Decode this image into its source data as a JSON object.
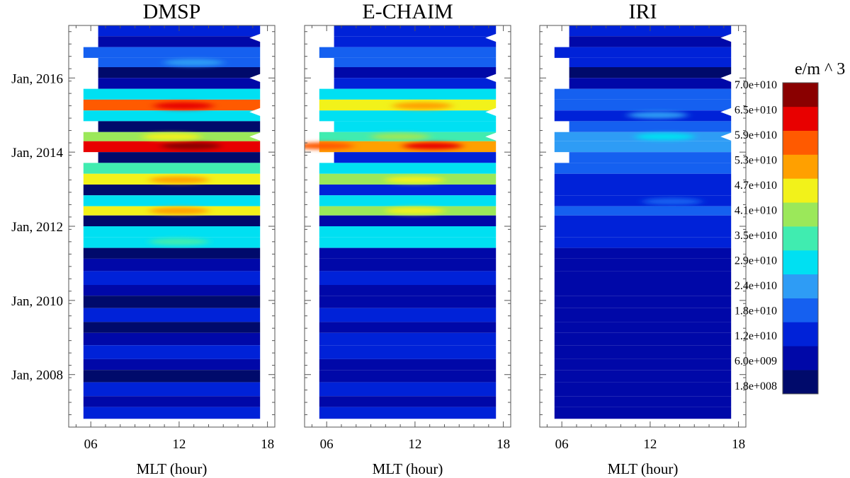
{
  "figure": {
    "time_tick_labels": [
      "Jan, 2016",
      "Jan, 2014",
      "Jan, 2012",
      "Jan, 2010",
      "Jan, 2008"
    ],
    "mlt_tick_labels": [
      "06",
      "12",
      "18"
    ],
    "colorbar": {
      "title": "e/m ^ 3",
      "levels": [
        "1.8e+008",
        "6.0e+009",
        "1.2e+010",
        "1.8e+010",
        "2.4e+010",
        "2.9e+010",
        "3.5e+010",
        "4.1e+010",
        "4.7e+010",
        "5.3e+010",
        "5.9e+010",
        "6.5e+010",
        "7.0e+010"
      ],
      "colors": [
        "#000a6b",
        "#0008a8",
        "#0022d8",
        "#1560f0",
        "#2e9cf5",
        "#00e0f2",
        "#40ecb0",
        "#9be85a",
        "#f2f21a",
        "#ffa000",
        "#ff5a00",
        "#e80000",
        "#8a0000"
      ]
    }
  },
  "chart_data": [
    {
      "type": "heatmap",
      "title": "DMSP",
      "xlabel": "MLT (hour)",
      "ylabel": "",
      "xlim": [
        4.5,
        18.5
      ],
      "x_ticks": [
        6,
        12,
        18
      ],
      "ylim": [
        "2006-08",
        "2017-06"
      ],
      "value_unit": "e/m^3",
      "data_x_range": [
        5.5,
        17.5
      ],
      "rows": [
        {
          "time": "2017-04",
          "x_start": 6.5,
          "level": 2
        },
        {
          "time": "2017-01",
          "x_start": 6.5,
          "level": 1
        },
        {
          "time": "2016-09",
          "x_start": 5.5,
          "level": 3
        },
        {
          "time": "2016-06",
          "x_start": 6.5,
          "level": 3
        },
        {
          "time": "2016-03",
          "x_start": 6.5,
          "level": 0
        },
        {
          "time": "2015-11",
          "x_start": 6.5,
          "level": 1
        },
        {
          "time": "2015-08",
          "x_start": 5.5,
          "level": 5
        },
        {
          "time": "2015-04",
          "x_start": 5.5,
          "level": 10
        },
        {
          "time": "2015-01",
          "x_start": 5.5,
          "level": 5
        },
        {
          "time": "2014-09",
          "x_start": 6.5,
          "level": 0
        },
        {
          "time": "2014-06",
          "x_start": 5.5,
          "level": 7
        },
        {
          "time": "2014-03",
          "x_start": 5.5,
          "level": 11
        },
        {
          "time": "2013-11",
          "x_start": 6.5,
          "level": 0
        },
        {
          "time": "2013-08",
          "x_start": 5.5,
          "level": 6
        },
        {
          "time": "2013-04",
          "x_start": 5.5,
          "level": 8
        },
        {
          "time": "2013-01",
          "x_start": 5.5,
          "level": 0
        },
        {
          "time": "2012-09",
          "x_start": 5.5,
          "level": 5
        },
        {
          "time": "2012-06",
          "x_start": 5.5,
          "level": 8
        },
        {
          "time": "2012-03",
          "x_start": 5.5,
          "level": 0
        },
        {
          "time": "2011-11",
          "x_start": 5.5,
          "level": 5
        },
        {
          "time": "2011-08",
          "x_start": 5.5,
          "level": 5
        },
        {
          "time": "2011-04",
          "x_start": 5.5,
          "level": 0
        },
        {
          "time": "2011-01",
          "x_start": 5.5,
          "level": 1
        },
        {
          "time": "2010-08",
          "x_start": 5.5,
          "level": 2
        },
        {
          "time": "2010-04",
          "x_start": 5.5,
          "level": 1
        },
        {
          "time": "2010-01",
          "x_start": 5.5,
          "level": 0
        },
        {
          "time": "2009-08",
          "x_start": 5.5,
          "level": 2
        },
        {
          "time": "2009-04",
          "x_start": 5.5,
          "level": 0
        },
        {
          "time": "2009-01",
          "x_start": 5.5,
          "level": 1
        },
        {
          "time": "2008-08",
          "x_start": 5.5,
          "level": 2
        },
        {
          "time": "2008-04",
          "x_start": 5.5,
          "level": 1
        },
        {
          "time": "2008-01",
          "x_start": 5.5,
          "level": 0
        },
        {
          "time": "2007-08",
          "x_start": 5.5,
          "level": 2
        },
        {
          "time": "2007-04",
          "x_start": 5.5,
          "level": 1
        },
        {
          "time": "2007-01",
          "x_start": 5.5,
          "level": 2
        }
      ],
      "hotspots": [
        {
          "time": "2015-04",
          "x": 12.3,
          "level": 11
        },
        {
          "time": "2014-03",
          "x": 12.8,
          "level": 12
        },
        {
          "time": "2014-06",
          "x": 11.5,
          "level": 8
        },
        {
          "time": "2013-04",
          "x": 12.0,
          "level": 9
        },
        {
          "time": "2012-06",
          "x": 12.0,
          "level": 9
        },
        {
          "time": "2016-06",
          "x": 13.0,
          "level": 4
        },
        {
          "time": "2011-08",
          "x": 12.0,
          "level": 6
        }
      ]
    },
    {
      "type": "heatmap",
      "title": "E-CHAIM",
      "xlabel": "MLT (hour)",
      "ylabel": "",
      "xlim": [
        4.5,
        18.5
      ],
      "x_ticks": [
        6,
        12,
        18
      ],
      "ylim": [
        "2006-08",
        "2017-06"
      ],
      "value_unit": "e/m^3",
      "data_x_range": [
        5.5,
        17.5
      ],
      "rows": [
        {
          "time": "2017-04",
          "x_start": 6.5,
          "level": 2
        },
        {
          "time": "2017-01",
          "x_start": 6.5,
          "level": 2
        },
        {
          "time": "2016-09",
          "x_start": 5.5,
          "level": 3
        },
        {
          "time": "2016-06",
          "x_start": 6.5,
          "level": 3
        },
        {
          "time": "2016-03",
          "x_start": 6.5,
          "level": 1
        },
        {
          "time": "2015-11",
          "x_start": 6.5,
          "level": 2
        },
        {
          "time": "2015-08",
          "x_start": 5.5,
          "level": 5
        },
        {
          "time": "2015-04",
          "x_start": 5.5,
          "level": 8
        },
        {
          "time": "2015-01",
          "x_start": 5.5,
          "level": 5
        },
        {
          "time": "2014-09",
          "x_start": 6.5,
          "level": 5
        },
        {
          "time": "2014-06",
          "x_start": 5.5,
          "level": 6
        },
        {
          "time": "2014-03",
          "x_start": 5.5,
          "level": 9
        },
        {
          "time": "2013-11",
          "x_start": 6.5,
          "level": 2
        },
        {
          "time": "2013-08",
          "x_start": 5.5,
          "level": 5
        },
        {
          "time": "2013-04",
          "x_start": 5.5,
          "level": 7
        },
        {
          "time": "2013-01",
          "x_start": 5.5,
          "level": 2
        },
        {
          "time": "2012-09",
          "x_start": 5.5,
          "level": 5
        },
        {
          "time": "2012-06",
          "x_start": 5.5,
          "level": 7
        },
        {
          "time": "2012-03",
          "x_start": 5.5,
          "level": 1
        },
        {
          "time": "2011-11",
          "x_start": 5.5,
          "level": 5
        },
        {
          "time": "2011-08",
          "x_start": 5.5,
          "level": 5
        },
        {
          "time": "2011-04",
          "x_start": 5.5,
          "level": 1
        },
        {
          "time": "2011-01",
          "x_start": 5.5,
          "level": 1
        },
        {
          "time": "2010-08",
          "x_start": 5.5,
          "level": 2
        },
        {
          "time": "2010-04",
          "x_start": 5.5,
          "level": 1
        },
        {
          "time": "2010-01",
          "x_start": 5.5,
          "level": 1
        },
        {
          "time": "2009-08",
          "x_start": 5.5,
          "level": 2
        },
        {
          "time": "2009-04",
          "x_start": 5.5,
          "level": 1
        },
        {
          "time": "2009-01",
          "x_start": 5.5,
          "level": 2
        },
        {
          "time": "2008-08",
          "x_start": 5.5,
          "level": 2
        },
        {
          "time": "2008-04",
          "x_start": 5.5,
          "level": 1
        },
        {
          "time": "2008-01",
          "x_start": 5.5,
          "level": 1
        },
        {
          "time": "2007-08",
          "x_start": 5.5,
          "level": 2
        },
        {
          "time": "2007-04",
          "x_start": 5.5,
          "level": 1
        },
        {
          "time": "2007-01",
          "x_start": 5.5,
          "level": 2
        }
      ],
      "hotspots": [
        {
          "time": "2015-04",
          "x": 12.5,
          "level": 9
        },
        {
          "time": "2014-03",
          "x": 13.2,
          "level": 11
        },
        {
          "time": "2014-03",
          "x": 5.8,
          "level": 10
        },
        {
          "time": "2013-04",
          "x": 12.0,
          "level": 8
        },
        {
          "time": "2012-06",
          "x": 12.0,
          "level": 8
        },
        {
          "time": "2014-06",
          "x": 11.0,
          "level": 7
        }
      ]
    },
    {
      "type": "heatmap",
      "title": "IRI",
      "xlabel": "MLT (hour)",
      "ylabel": "",
      "xlim": [
        4.5,
        18.5
      ],
      "x_ticks": [
        6,
        12,
        18
      ],
      "ylim": [
        "2006-08",
        "2017-06"
      ],
      "value_unit": "e/m^3",
      "data_x_range": [
        5.5,
        17.5
      ],
      "rows": [
        {
          "time": "2017-04",
          "x_start": 6.5,
          "level": 2
        },
        {
          "time": "2017-01",
          "x_start": 6.5,
          "level": 1
        },
        {
          "time": "2016-09",
          "x_start": 5.5,
          "level": 2
        },
        {
          "time": "2016-06",
          "x_start": 6.5,
          "level": 2
        },
        {
          "time": "2016-03",
          "x_start": 6.5,
          "level": 0
        },
        {
          "time": "2015-11",
          "x_start": 6.5,
          "level": 1
        },
        {
          "time": "2015-08",
          "x_start": 5.5,
          "level": 3
        },
        {
          "time": "2015-04",
          "x_start": 5.5,
          "level": 3
        },
        {
          "time": "2015-01",
          "x_start": 5.5,
          "level": 2
        },
        {
          "time": "2014-09",
          "x_start": 6.5,
          "level": 3
        },
        {
          "time": "2014-06",
          "x_start": 5.5,
          "level": 4
        },
        {
          "time": "2014-03",
          "x_start": 5.5,
          "level": 4
        },
        {
          "time": "2013-11",
          "x_start": 6.5,
          "level": 3
        },
        {
          "time": "2013-08",
          "x_start": 5.5,
          "level": 3
        },
        {
          "time": "2013-04",
          "x_start": 5.5,
          "level": 2
        },
        {
          "time": "2013-01",
          "x_start": 5.5,
          "level": 2
        },
        {
          "time": "2012-09",
          "x_start": 5.5,
          "level": 2
        },
        {
          "time": "2012-06",
          "x_start": 5.5,
          "level": 3
        },
        {
          "time": "2012-03",
          "x_start": 5.5,
          "level": 2
        },
        {
          "time": "2011-11",
          "x_start": 5.5,
          "level": 2
        },
        {
          "time": "2011-08",
          "x_start": 5.5,
          "level": 2
        },
        {
          "time": "2011-04",
          "x_start": 5.5,
          "level": 1
        },
        {
          "time": "2011-01",
          "x_start": 5.5,
          "level": 1
        },
        {
          "time": "2010-08",
          "x_start": 5.5,
          "level": 1
        },
        {
          "time": "2010-04",
          "x_start": 5.5,
          "level": 1
        },
        {
          "time": "2010-01",
          "x_start": 5.5,
          "level": 1
        },
        {
          "time": "2009-08",
          "x_start": 5.5,
          "level": 1
        },
        {
          "time": "2009-04",
          "x_start": 5.5,
          "level": 1
        },
        {
          "time": "2009-01",
          "x_start": 5.5,
          "level": 1
        },
        {
          "time": "2008-08",
          "x_start": 5.5,
          "level": 1
        },
        {
          "time": "2008-04",
          "x_start": 5.5,
          "level": 1
        },
        {
          "time": "2008-01",
          "x_start": 5.5,
          "level": 1
        },
        {
          "time": "2007-08",
          "x_start": 5.5,
          "level": 1
        },
        {
          "time": "2007-04",
          "x_start": 5.5,
          "level": 1
        },
        {
          "time": "2007-01",
          "x_start": 5.5,
          "level": 1
        }
      ],
      "hotspots": [
        {
          "time": "2015-01",
          "x": 12.5,
          "level": 4
        },
        {
          "time": "2014-06",
          "x": 13.0,
          "level": 5
        },
        {
          "time": "2012-09",
          "x": 13.5,
          "level": 3
        }
      ]
    }
  ]
}
